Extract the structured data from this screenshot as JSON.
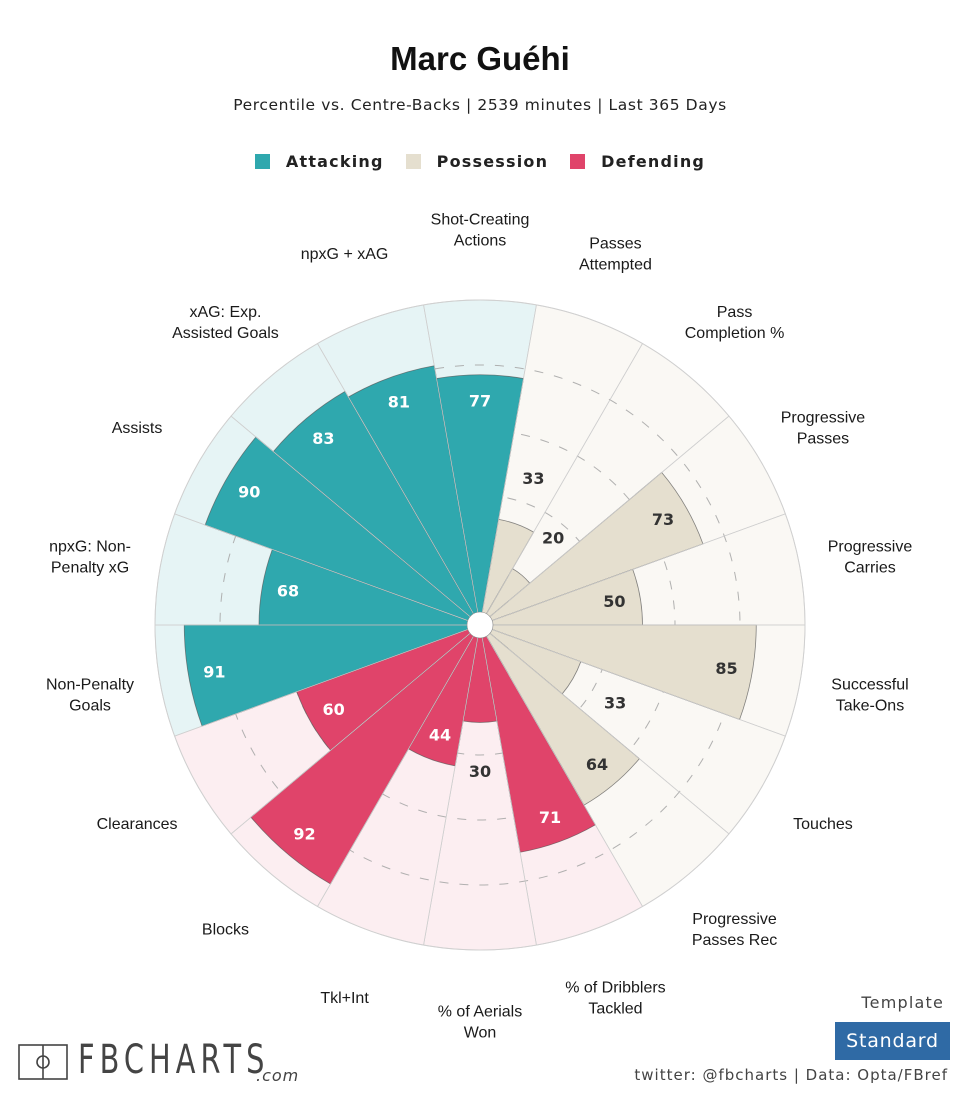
{
  "header": {
    "title": "Marc Guéhi",
    "subtitle": "Percentile vs. Centre-Backs | 2539 minutes | Last 365 Days"
  },
  "legend": [
    {
      "label": "Attacking",
      "color": "#2fa8ae"
    },
    {
      "label": "Possession",
      "color": "#e5dfcf"
    },
    {
      "label": "Defending",
      "color": "#e0446a"
    }
  ],
  "colors": {
    "attacking": "#2fa8ae",
    "attacking_bg": "#e6f4f5",
    "possession": "#e5dfcf",
    "possession_bg": "#faf8f4",
    "defending": "#e0446a",
    "defending_bg": "#fceef1"
  },
  "chart_data": {
    "type": "pizza",
    "title": "Marc Guéhi",
    "subtitle": "Percentile vs. Centre-Backs | 2539 minutes | Last 365 Days",
    "scale": [
      0,
      100
    ],
    "gridlines": [
      20,
      40,
      60,
      80
    ],
    "categories": [
      {
        "label": "Non-Penalty Goals",
        "lines": [
          "Non-Penalty",
          "Goals"
        ],
        "group": "attacking",
        "value": 91
      },
      {
        "label": "npxG: Non-Penalty xG",
        "lines": [
          "npxG: Non-",
          "Penalty xG"
        ],
        "group": "attacking",
        "value": 68
      },
      {
        "label": "Assists",
        "lines": [
          "Assists"
        ],
        "group": "attacking",
        "value": 90
      },
      {
        "label": "xAG: Exp. Assisted Goals",
        "lines": [
          "xAG: Exp.",
          "Assisted Goals"
        ],
        "group": "attacking",
        "value": 83
      },
      {
        "label": "npxG + xAG",
        "lines": [
          "npxG + xAG"
        ],
        "group": "attacking",
        "value": 81
      },
      {
        "label": "Shot-Creating Actions",
        "lines": [
          "Shot-Creating",
          "Actions"
        ],
        "group": "attacking",
        "value": 77
      },
      {
        "label": "Passes Attempted",
        "lines": [
          "Passes",
          "Attempted"
        ],
        "group": "possession",
        "value": 33
      },
      {
        "label": "Pass Completion %",
        "lines": [
          "Pass",
          "Completion %"
        ],
        "group": "possession",
        "value": 20
      },
      {
        "label": "Progressive Passes",
        "lines": [
          "Progressive",
          "Passes"
        ],
        "group": "possession",
        "value": 73
      },
      {
        "label": "Progressive Carries",
        "lines": [
          "Progressive",
          "Carries"
        ],
        "group": "possession",
        "value": 50
      },
      {
        "label": "Successful Take-Ons",
        "lines": [
          "Successful",
          "Take-Ons"
        ],
        "group": "possession",
        "value": 85
      },
      {
        "label": "Touches",
        "lines": [
          "Touches"
        ],
        "group": "possession",
        "value": 33
      },
      {
        "label": "Progressive Passes Rec",
        "lines": [
          "Progressive",
          "Passes Rec"
        ],
        "group": "possession",
        "value": 64
      },
      {
        "label": "% of Dribblers Tackled",
        "lines": [
          "% of Dribblers",
          "Tackled"
        ],
        "group": "defending",
        "value": 71
      },
      {
        "label": "% of Aerials Won",
        "lines": [
          "% of Aerials",
          "Won"
        ],
        "group": "defending",
        "value": 30
      },
      {
        "label": "Tkl+Int",
        "lines": [
          "Tkl+Int"
        ],
        "group": "defending",
        "value": 44
      },
      {
        "label": "Blocks",
        "lines": [
          "Blocks"
        ],
        "group": "defending",
        "value": 92
      },
      {
        "label": "Clearances",
        "lines": [
          "Clearances"
        ],
        "group": "defending",
        "value": 60
      }
    ]
  },
  "footer": {
    "logo_text": "FBCHARTS",
    "logo_suffix": ".com",
    "template_label": "Template",
    "template_value": "Standard",
    "credits": "twitter: @fbcharts | Data: Opta/FBref"
  }
}
